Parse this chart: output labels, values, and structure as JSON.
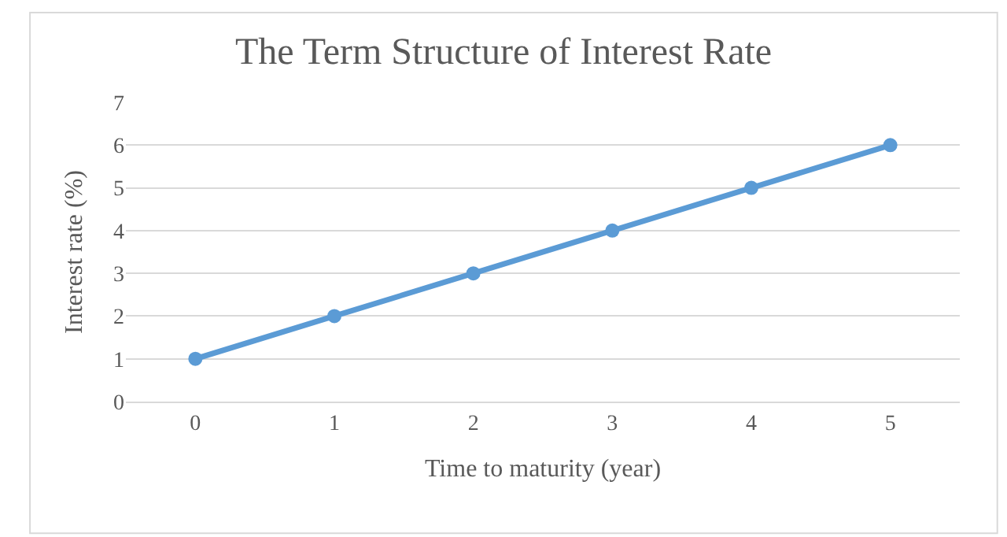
{
  "chart_data": {
    "type": "line",
    "title": "The Term Structure of Interest Rate",
    "xlabel": "Time to maturity (year)",
    "ylabel": "Interest rate (%)",
    "categories": [
      "0",
      "1",
      "2",
      "3",
      "4",
      "5"
    ],
    "series": [
      {
        "color": "#5b9bd5",
        "values": [
          1,
          2,
          3,
          4,
          5,
          6
        ]
      }
    ],
    "ylim": [
      0,
      7
    ],
    "yticks": [
      0,
      1,
      2,
      3,
      4,
      5,
      6,
      7
    ],
    "grid": "y",
    "legend": false,
    "marker": "circle",
    "line_style": "solid"
  }
}
